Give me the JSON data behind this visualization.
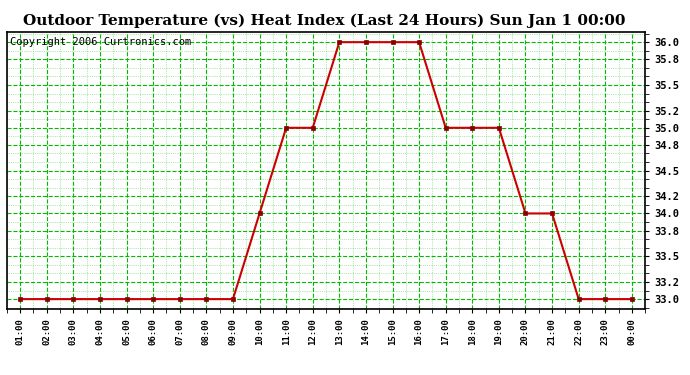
{
  "title": "Outdoor Temperature (vs) Heat Index (Last 24 Hours) Sun Jan 1 00:00",
  "copyright": "Copyright 2006 Curtronics.com",
  "x_labels": [
    "01:00",
    "02:00",
    "03:00",
    "04:00",
    "05:00",
    "06:00",
    "07:00",
    "08:00",
    "09:00",
    "10:00",
    "11:00",
    "12:00",
    "13:00",
    "14:00",
    "15:00",
    "16:00",
    "17:00",
    "18:00",
    "19:00",
    "20:00",
    "21:00",
    "22:00",
    "23:00",
    "00:00"
  ],
  "y_values": [
    33.0,
    33.0,
    33.0,
    33.0,
    33.0,
    33.0,
    33.0,
    33.0,
    33.0,
    34.0,
    35.0,
    35.0,
    36.0,
    36.0,
    36.0,
    36.0,
    35.0,
    35.0,
    35.0,
    34.0,
    34.0,
    33.0,
    33.0,
    33.0
  ],
  "ylim_min": 32.88,
  "ylim_max": 36.12,
  "y_ticks": [
    33.0,
    33.2,
    33.5,
    33.8,
    34.0,
    34.2,
    34.5,
    34.8,
    35.0,
    35.2,
    35.5,
    35.8,
    36.0
  ],
  "line_color": "#cc0000",
  "marker_color": "#880000",
  "bg_color": "#ffffff",
  "plot_bg_color": "#ffffff",
  "grid_color": "#00bb00",
  "title_fontsize": 11,
  "copyright_fontsize": 7.5
}
